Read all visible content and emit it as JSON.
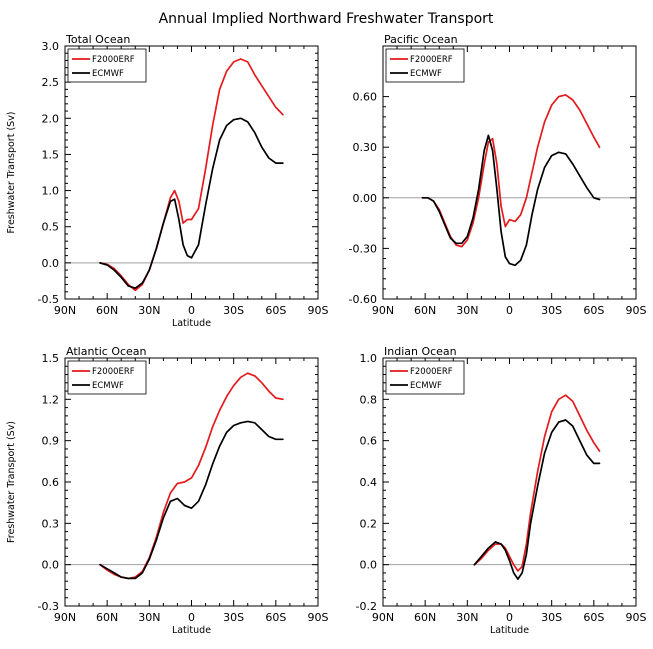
{
  "figure_title": "Annual Implied Northward Freshwater Transport",
  "chart_data": [
    {
      "type": "line",
      "title": "Total Ocean",
      "xlabel": "Latitude",
      "ylabel": "Freshwater Transport (Sv)",
      "xlim": [
        -90,
        90
      ],
      "ylim": [
        -0.5,
        3.0
      ],
      "xticks": [
        -90,
        -60,
        -30,
        0,
        30,
        60,
        90
      ],
      "xticklabels": [
        "90N",
        "60N",
        "30N",
        "0",
        "30S",
        "60S",
        "90S"
      ],
      "yticks": [
        -0.5,
        0.0,
        0.5,
        1.0,
        1.5,
        2.0,
        2.5,
        3.0
      ],
      "yticklabels": [
        "-0.5",
        "0.0",
        "0.5",
        "1.0",
        "1.5",
        "2.0",
        "2.5",
        "3.0"
      ],
      "zero_line": 0,
      "legend": [
        "F2000ERF",
        "ECMWF"
      ],
      "series": [
        {
          "name": "F2000ERF",
          "color": "#e41a1c",
          "x": [
            -65,
            -60,
            -55,
            -50,
            -45,
            -40,
            -35,
            -30,
            -25,
            -20,
            -15,
            -12,
            -9,
            -6,
            -3,
            0,
            5,
            10,
            15,
            20,
            25,
            30,
            35,
            40,
            45,
            50,
            55,
            60,
            65
          ],
          "y": [
            0.0,
            -0.02,
            -0.08,
            -0.18,
            -0.3,
            -0.38,
            -0.3,
            -0.1,
            0.2,
            0.55,
            0.9,
            1.0,
            0.85,
            0.55,
            0.6,
            0.6,
            0.75,
            1.3,
            1.9,
            2.4,
            2.65,
            2.78,
            2.82,
            2.78,
            2.6,
            2.45,
            2.3,
            2.15,
            2.05
          ]
        },
        {
          "name": "ECMWF",
          "color": "#000000",
          "x": [
            -65,
            -60,
            -55,
            -50,
            -45,
            -40,
            -35,
            -30,
            -25,
            -20,
            -15,
            -12,
            -9,
            -6,
            -3,
            0,
            5,
            10,
            15,
            20,
            25,
            30,
            35,
            40,
            45,
            50,
            55,
            60,
            65
          ],
          "y": [
            0.0,
            -0.03,
            -0.1,
            -0.2,
            -0.32,
            -0.35,
            -0.28,
            -0.1,
            0.2,
            0.55,
            0.85,
            0.88,
            0.6,
            0.25,
            0.1,
            0.07,
            0.25,
            0.8,
            1.3,
            1.7,
            1.9,
            1.98,
            2.0,
            1.95,
            1.8,
            1.6,
            1.45,
            1.38,
            1.38
          ]
        }
      ]
    },
    {
      "type": "line",
      "title": "Pacific Ocean",
      "xlabel": "",
      "ylabel": "",
      "xlim": [
        -90,
        90
      ],
      "ylim": [
        -0.6,
        0.9
      ],
      "xticks": [
        -90,
        -60,
        -30,
        0,
        30,
        60,
        90
      ],
      "xticklabels": [
        "90N",
        "60N",
        "30N",
        "0",
        "30S",
        "60S",
        "90S"
      ],
      "yticks": [
        -0.6,
        -0.3,
        0.0,
        0.3,
        0.6
      ],
      "yticklabels": [
        "-0.60",
        "-0.30",
        "0.00",
        "0.30",
        "0.60"
      ],
      "zero_line": 0,
      "legend": [
        "F2000ERF",
        "ECMWF"
      ],
      "series": [
        {
          "name": "F2000ERF",
          "color": "#e41a1c",
          "x": [
            -62,
            -58,
            -54,
            -50,
            -46,
            -42,
            -38,
            -34,
            -30,
            -26,
            -22,
            -18,
            -15,
            -12,
            -9,
            -6,
            -3,
            0,
            4,
            8,
            12,
            16,
            20,
            25,
            30,
            35,
            40,
            45,
            50,
            55,
            60,
            64
          ],
          "y": [
            0.0,
            0.0,
            -0.02,
            -0.07,
            -0.15,
            -0.23,
            -0.28,
            -0.29,
            -0.25,
            -0.15,
            0.0,
            0.2,
            0.33,
            0.35,
            0.2,
            -0.05,
            -0.17,
            -0.13,
            -0.14,
            -0.1,
            0.0,
            0.15,
            0.3,
            0.45,
            0.55,
            0.6,
            0.61,
            0.58,
            0.52,
            0.44,
            0.36,
            0.3
          ]
        },
        {
          "name": "ECMWF",
          "color": "#000000",
          "x": [
            -62,
            -58,
            -54,
            -50,
            -46,
            -42,
            -38,
            -34,
            -30,
            -26,
            -22,
            -18,
            -15,
            -12,
            -9,
            -6,
            -3,
            0,
            4,
            8,
            12,
            16,
            20,
            25,
            30,
            35,
            40,
            45,
            50,
            55,
            60,
            64
          ],
          "y": [
            0.0,
            0.0,
            -0.02,
            -0.08,
            -0.16,
            -0.24,
            -0.27,
            -0.27,
            -0.23,
            -0.12,
            0.05,
            0.28,
            0.37,
            0.28,
            0.05,
            -0.2,
            -0.35,
            -0.39,
            -0.4,
            -0.37,
            -0.28,
            -0.1,
            0.05,
            0.18,
            0.25,
            0.27,
            0.26,
            0.2,
            0.13,
            0.06,
            0.0,
            -0.01
          ]
        }
      ]
    },
    {
      "type": "line",
      "title": "Atlantic Ocean",
      "xlabel": "Latitude",
      "ylabel": "Freshwater Transport (Sv)",
      "xlim": [
        -90,
        90
      ],
      "ylim": [
        -0.3,
        1.5
      ],
      "xticks": [
        -90,
        -60,
        -30,
        0,
        30,
        60,
        90
      ],
      "xticklabels": [
        "90N",
        "60N",
        "30N",
        "0",
        "30S",
        "60S",
        "90S"
      ],
      "yticks": [
        -0.3,
        0.0,
        0.3,
        0.6,
        0.9,
        1.2,
        1.5
      ],
      "yticklabels": [
        "-0.3",
        "0.0",
        "0.3",
        "0.6",
        "0.9",
        "1.2",
        "1.5"
      ],
      "zero_line": 0,
      "legend": [
        "F2000ERF",
        "ECMWF"
      ],
      "series": [
        {
          "name": "F2000ERF",
          "color": "#e41a1c",
          "x": [
            -65,
            -60,
            -55,
            -50,
            -45,
            -40,
            -35,
            -30,
            -25,
            -20,
            -15,
            -10,
            -5,
            0,
            5,
            10,
            15,
            20,
            25,
            30,
            35,
            40,
            45,
            50,
            55,
            60,
            65
          ],
          "y": [
            0.0,
            -0.04,
            -0.07,
            -0.09,
            -0.1,
            -0.09,
            -0.05,
            0.05,
            0.2,
            0.38,
            0.52,
            0.59,
            0.6,
            0.63,
            0.72,
            0.85,
            1.0,
            1.12,
            1.22,
            1.3,
            1.36,
            1.39,
            1.37,
            1.32,
            1.26,
            1.21,
            1.2
          ]
        },
        {
          "name": "ECMWF",
          "color": "#000000",
          "x": [
            -65,
            -60,
            -55,
            -50,
            -45,
            -40,
            -35,
            -30,
            -25,
            -20,
            -15,
            -10,
            -5,
            0,
            5,
            10,
            15,
            20,
            25,
            30,
            35,
            40,
            45,
            50,
            55,
            60,
            65
          ],
          "y": [
            0.0,
            -0.03,
            -0.06,
            -0.09,
            -0.1,
            -0.1,
            -0.06,
            0.04,
            0.18,
            0.34,
            0.46,
            0.48,
            0.43,
            0.41,
            0.46,
            0.58,
            0.73,
            0.86,
            0.96,
            1.01,
            1.03,
            1.04,
            1.03,
            0.98,
            0.93,
            0.91,
            0.91
          ]
        }
      ]
    },
    {
      "type": "line",
      "title": "Indian Ocean",
      "xlabel": "Latitude",
      "ylabel": "",
      "xlim": [
        -90,
        90
      ],
      "ylim": [
        -0.2,
        1.0
      ],
      "xticks": [
        -90,
        -60,
        -30,
        0,
        30,
        60,
        90
      ],
      "xticklabels": [
        "90N",
        "60N",
        "30N",
        "0",
        "30S",
        "60S",
        "90S"
      ],
      "yticks": [
        -0.2,
        0.0,
        0.2,
        0.4,
        0.6,
        0.8,
        1.0
      ],
      "yticklabels": [
        "-0.2",
        "0.0",
        "0.2",
        "0.4",
        "0.6",
        "0.8",
        "1.0"
      ],
      "zero_line": 0,
      "legend": [
        "F2000ERF",
        "ECMWF"
      ],
      "series": [
        {
          "name": "F2000ERF",
          "color": "#e41a1c",
          "x": [
            -25,
            -20,
            -15,
            -10,
            -6,
            -3,
            0,
            3,
            6,
            9,
            12,
            15,
            20,
            25,
            30,
            35,
            40,
            45,
            50,
            55,
            60,
            64
          ],
          "y": [
            0.0,
            0.03,
            0.07,
            0.1,
            0.1,
            0.08,
            0.04,
            0.0,
            -0.03,
            -0.01,
            0.1,
            0.25,
            0.45,
            0.62,
            0.74,
            0.8,
            0.82,
            0.79,
            0.72,
            0.65,
            0.59,
            0.55
          ]
        },
        {
          "name": "ECMWF",
          "color": "#000000",
          "x": [
            -25,
            -20,
            -15,
            -10,
            -6,
            -3,
            0,
            3,
            6,
            9,
            12,
            15,
            20,
            25,
            30,
            35,
            40,
            45,
            50,
            55,
            60,
            64
          ],
          "y": [
            0.0,
            0.04,
            0.08,
            0.11,
            0.1,
            0.07,
            0.02,
            -0.04,
            -0.07,
            -0.04,
            0.05,
            0.2,
            0.38,
            0.54,
            0.64,
            0.69,
            0.7,
            0.67,
            0.6,
            0.53,
            0.49,
            0.49
          ]
        }
      ]
    }
  ]
}
